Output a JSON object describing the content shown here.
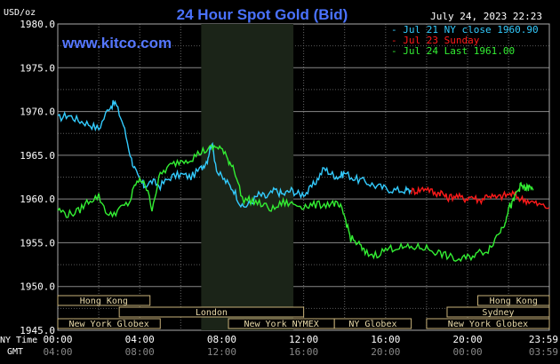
{
  "header": {
    "y_unit": "USD/oz",
    "title": "24 Hour Spot Gold (Bid)",
    "date_time": "July 24, 2023 22:23",
    "brand": "www.kitco.com"
  },
  "legend": [
    {
      "prefix": "- ",
      "label": "Jul 21 NY close 1960.90",
      "color": "#33ccff"
    },
    {
      "prefix": "- ",
      "label": "Jul 23 Sunday",
      "color": "#ff1a1a"
    },
    {
      "prefix": "- ",
      "label": "Jul 24 Last 1961.00",
      "color": "#33ee33"
    }
  ],
  "axis": {
    "ny_time_label": "NY Time",
    "gmt_label": "GMT",
    "ny_ticks": [
      "00:00",
      "04:00",
      "08:00",
      "12:00",
      "16:00",
      "20:00",
      "23:59"
    ],
    "gmt_ticks": [
      "04:00",
      "08:00",
      "12:00",
      "16:00",
      "20:00",
      "00:00",
      "03:59"
    ],
    "y_ticks": [
      "1980.0",
      "1975.0",
      "1970.0",
      "1965.0",
      "1960.0",
      "1955.0",
      "1950.0",
      "1945.0"
    ]
  },
  "sessions": [
    {
      "name": "Hong Kong",
      "start": 0,
      "end": 4.5
    },
    {
      "name": "London",
      "start": 3,
      "end": 12
    },
    {
      "name": "New York Globex",
      "start": 0,
      "end": 5
    },
    {
      "name": "New York NYMEX",
      "start": 8.33,
      "end": 13.5
    },
    {
      "name": "NY Globex",
      "start": 13.5,
      "end": 17.25
    },
    {
      "name": "Hong Kong",
      "start": 20.5,
      "end": 23.99
    },
    {
      "name": "Sydney",
      "start": 19,
      "end": 23.99
    },
    {
      "name": "New York Globex",
      "start": 18,
      "end": 23.99
    }
  ],
  "chart_data": {
    "type": "line",
    "title": "24 Hour Spot Gold (Bid)",
    "ylabel": "USD/oz",
    "xlabel": "NY Time",
    "xlim": [
      0,
      23.99
    ],
    "ylim": [
      1945,
      1980
    ],
    "grid": true,
    "legend_position": "top-right",
    "shaded_region": [
      7,
      11.5
    ],
    "series": [
      {
        "name": "Jul 21 NY close 1960.90",
        "color": "#33ccff",
        "x": [
          0,
          0.5,
          1.0,
          1.5,
          2.0,
          2.5,
          2.8,
          3.2,
          3.6,
          3.9,
          4.2,
          4.6,
          5.0,
          5.5,
          6.0,
          6.5,
          7.0,
          7.3,
          7.5,
          7.8,
          8.2,
          8.6,
          9.0,
          9.4,
          9.8,
          10.2,
          10.6,
          11.0,
          11.4,
          11.8,
          12.2,
          12.6,
          13.0,
          13.4,
          13.7,
          14.0,
          14.5,
          15.0,
          15.5,
          16.0,
          16.5,
          17.0,
          17.25
        ],
        "y": [
          1969.2,
          1969.6,
          1969.0,
          1968.6,
          1968.0,
          1970.5,
          1971.0,
          1968.5,
          1964.5,
          1962.5,
          1961.5,
          1962.0,
          1961.5,
          1962.5,
          1962.8,
          1962.5,
          1963.5,
          1964.5,
          1966.5,
          1963.0,
          1962.0,
          1961.0,
          1959.0,
          1959.5,
          1960.5,
          1960.2,
          1961.0,
          1960.5,
          1961.0,
          1960.5,
          1960.8,
          1962.0,
          1963.5,
          1962.8,
          1962.5,
          1963.0,
          1962.3,
          1962.0,
          1961.5,
          1961.2,
          1961.0,
          1961.0,
          1960.9
        ]
      },
      {
        "name": "Jul 23 Sunday",
        "color": "#ff1a1a",
        "x": [
          17.25,
          17.6,
          18.0,
          18.4,
          18.7,
          19.0,
          19.4,
          19.8,
          20.2,
          20.6,
          21.0,
          21.4,
          21.8,
          22.2,
          22.6,
          23.0,
          23.4,
          23.99
        ],
        "y": [
          1960.9,
          1961.0,
          1961.3,
          1960.6,
          1960.8,
          1960.1,
          1960.4,
          1960.0,
          1960.3,
          1959.8,
          1960.5,
          1960.1,
          1960.4,
          1960.6,
          1960.0,
          1959.8,
          1959.4,
          1959.0
        ]
      },
      {
        "name": "Jul 24 Last 1961.00",
        "color": "#33ee33",
        "x": [
          0,
          0.5,
          1.0,
          1.5,
          2.0,
          2.5,
          3.0,
          3.5,
          3.8,
          4.2,
          4.6,
          5.0,
          5.5,
          6.0,
          6.5,
          7.0,
          7.5,
          7.9,
          8.3,
          8.6,
          9.0,
          9.5,
          10.0,
          10.5,
          11.0,
          11.5,
          12.0,
          12.5,
          13.0,
          13.5,
          13.8,
          14.0,
          14.3,
          14.7,
          15.0,
          15.5,
          16.0,
          16.5,
          17.0,
          17.5,
          18.0,
          18.5,
          19.0,
          19.5,
          20.0,
          20.5,
          21.0,
          21.5,
          21.8,
          22.0,
          22.2,
          22.4,
          22.6,
          22.8,
          23.0,
          23.2
        ],
        "y": [
          1958.8,
          1958.2,
          1958.6,
          1959.8,
          1960.3,
          1958.0,
          1958.8,
          1959.6,
          1961.8,
          1962.2,
          1959.0,
          1962.8,
          1963.8,
          1964.4,
          1964.6,
          1965.4,
          1965.8,
          1966.0,
          1964.5,
          1963.6,
          1960.0,
          1959.8,
          1959.3,
          1958.8,
          1959.6,
          1959.4,
          1959.2,
          1959.3,
          1959.4,
          1959.5,
          1959.0,
          1958.0,
          1955.5,
          1954.8,
          1953.8,
          1953.6,
          1954.2,
          1954.5,
          1954.4,
          1954.5,
          1954.4,
          1953.9,
          1953.5,
          1953.0,
          1953.3,
          1953.8,
          1954.2,
          1956.0,
          1957.2,
          1959.0,
          1959.5,
          1960.8,
          1961.5,
          1961.2,
          1961.3,
          1961.0
        ]
      }
    ]
  }
}
